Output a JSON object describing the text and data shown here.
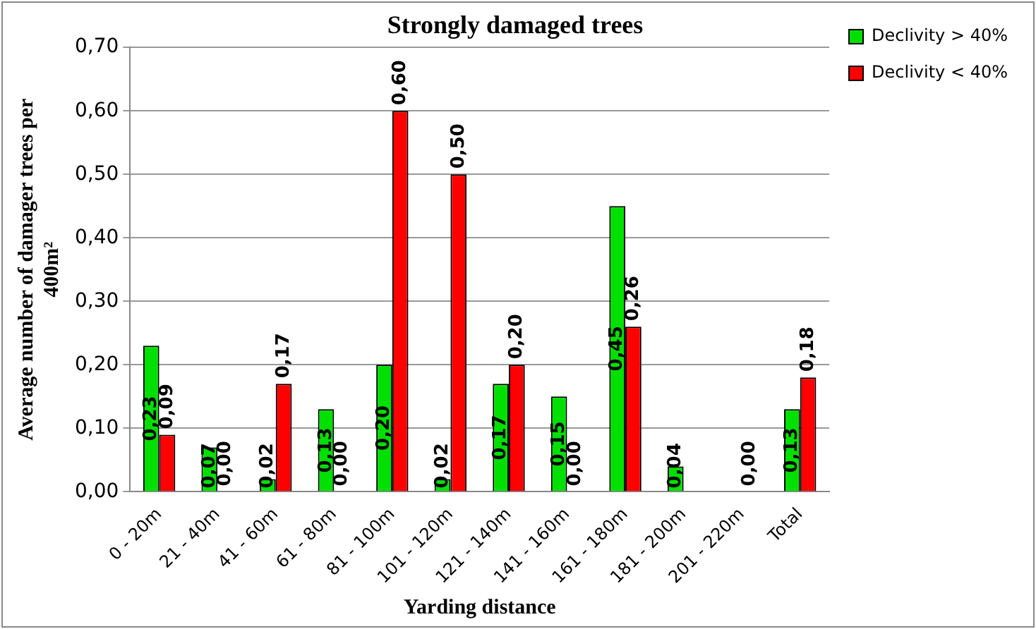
{
  "chart_data": {
    "type": "bar",
    "title": "Strongly damaged trees",
    "xlabel": "Yarding distance",
    "ylabel": "Average number of damager trees per 400m²",
    "categories": [
      "0 - 20m",
      "21 - 40m",
      "41 - 60m",
      "61 - 80m",
      "81 - 100m",
      "101 - 120m",
      "121 - 140m",
      "141 - 160m",
      "161 - 180m",
      "181 - 200m",
      "201 - 220m",
      "Total"
    ],
    "series": [
      {
        "name": "Declivity > 40%",
        "color": "#00e000",
        "values": [
          0.23,
          0.07,
          0.02,
          0.13,
          0.2,
          0.02,
          0.17,
          0.15,
          0.45,
          0.04,
          null,
          0.13
        ],
        "value_labels": [
          "0,23",
          "0,07",
          "0,02",
          "0,13",
          "0,20",
          "0,02",
          "0,17",
          "0,15",
          "0,45",
          "0,04",
          null,
          "0,13"
        ]
      },
      {
        "name": "Declivity < 40%",
        "color": "#ff0000",
        "values": [
          0.09,
          0.0,
          0.17,
          0.0,
          0.6,
          0.5,
          0.2,
          0.0,
          0.26,
          null,
          0.0,
          0.18
        ],
        "value_labels": [
          "0,09",
          "0,00",
          "0,17",
          "0,00",
          "0,60",
          "0,50",
          "0,20",
          "0,00",
          "0,26",
          null,
          "0,00",
          "0,18"
        ]
      }
    ],
    "ylim": [
      0,
      0.7
    ],
    "yticks": [
      {
        "value": 0,
        "label": "0,00"
      },
      {
        "value": 0.1,
        "label": "0,10"
      },
      {
        "value": 0.2,
        "label": "0,20"
      },
      {
        "value": 0.3,
        "label": "0,30"
      },
      {
        "value": 0.4,
        "label": "0,40"
      },
      {
        "value": 0.5,
        "label": "0,50"
      },
      {
        "value": 0.6,
        "label": "0,60"
      },
      {
        "value": 0.7,
        "label": "0,70"
      }
    ],
    "grid": "y",
    "legend": "right"
  }
}
